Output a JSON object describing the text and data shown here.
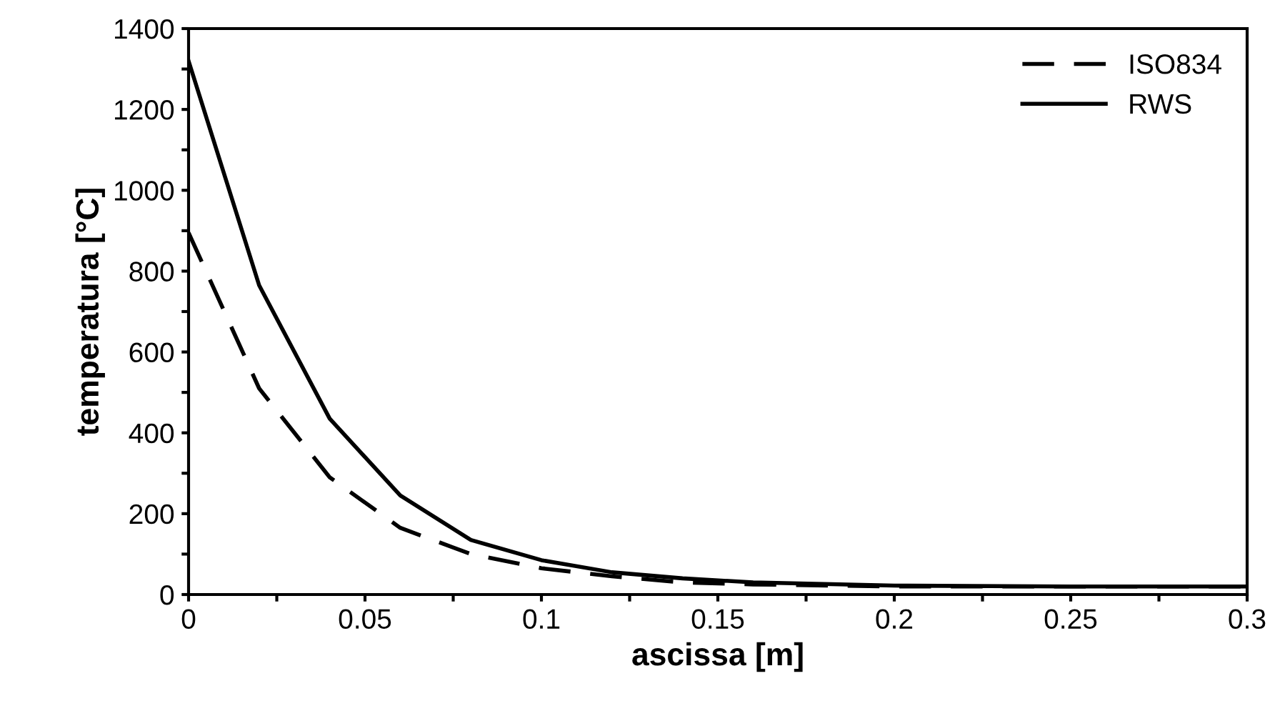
{
  "chart_data": {
    "type": "line",
    "xlabel": "ascissa [m]",
    "ylabel": "temperatura [°C]",
    "x": [
      0,
      0.02,
      0.04,
      0.06,
      0.08,
      0.1,
      0.12,
      0.14,
      0.16,
      0.2,
      0.25,
      0.3
    ],
    "series": [
      {
        "name": "ISO834",
        "color": "#000000",
        "line_style": "dashed",
        "values": [
          895,
          510,
          290,
          165,
          100,
          65,
          45,
          30,
          25,
          20,
          20,
          20
        ]
      },
      {
        "name": "RWS",
        "color": "#000000",
        "line_style": "solid",
        "values": [
          1320,
          765,
          435,
          245,
          135,
          85,
          55,
          40,
          30,
          22,
          20,
          20
        ]
      }
    ],
    "xlim": [
      0,
      0.3
    ],
    "xticks": [
      0,
      {
        "value": 0.025,
        "label": null
      },
      0.05,
      {
        "value": 0.075,
        "label": null
      },
      0.1,
      {
        "value": 0.125,
        "label": null
      },
      0.15,
      {
        "value": 0.175,
        "label": null
      },
      0.2,
      {
        "value": 0.225,
        "label": null
      },
      0.25,
      {
        "value": 0.275,
        "label": null
      },
      0.3
    ],
    "ylim": [
      0,
      1400
    ],
    "yticks": [
      0,
      {
        "value": 100,
        "label": null
      },
      200,
      {
        "value": 300,
        "label": null
      },
      400,
      {
        "value": 500,
        "label": null
      },
      600,
      {
        "value": 700,
        "label": null
      },
      800,
      {
        "value": 900,
        "label": null
      },
      1000,
      {
        "value": 1100,
        "label": null
      },
      1200,
      {
        "value": 1300,
        "label": null
      },
      1400
    ],
    "grid": false,
    "legend": "top right",
    "marker": "none"
  }
}
